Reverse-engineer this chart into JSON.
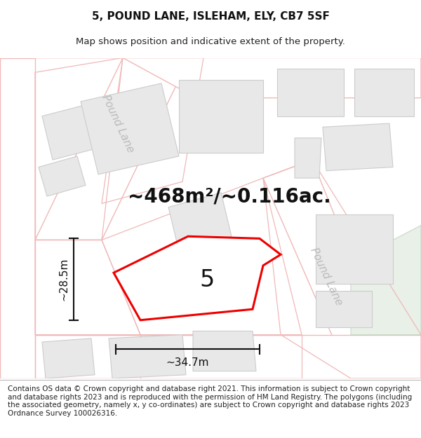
{
  "title": "5, POUND LANE, ISLEHAM, ELY, CB7 5SF",
  "subtitle": "Map shows position and indicative extent of the property.",
  "footer": "Contains OS data © Crown copyright and database right 2021. This information is subject to Crown copyright and database rights 2023 and is reproduced with the permission of HM Land Registry. The polygons (including the associated geometry, namely x, y co-ordinates) are subject to Crown copyright and database rights 2023 Ordnance Survey 100026316.",
  "area_label": "~468m²/~0.116ac.",
  "number_label": "5",
  "width_label": "~34.7m",
  "height_label": "~28.5m",
  "map_bg": "#f8f8f8",
  "road_fill": "#ffffff",
  "road_outline": "#f0b8b8",
  "building_fill": "#e8e8e8",
  "building_outline": "#cccccc",
  "plot_color": "#ee0000",
  "dim_line_color": "#111111",
  "green_area": "#e8f0e8",
  "green_outline": "#c8d8c8",
  "title_fontsize": 11,
  "subtitle_fontsize": 9.5,
  "footer_fontsize": 7.5,
  "area_label_fontsize": 20,
  "number_fontsize": 24,
  "dim_fontsize": 11,
  "street_label_fontsize": 11,
  "street_label_color": "#bbbbbb"
}
